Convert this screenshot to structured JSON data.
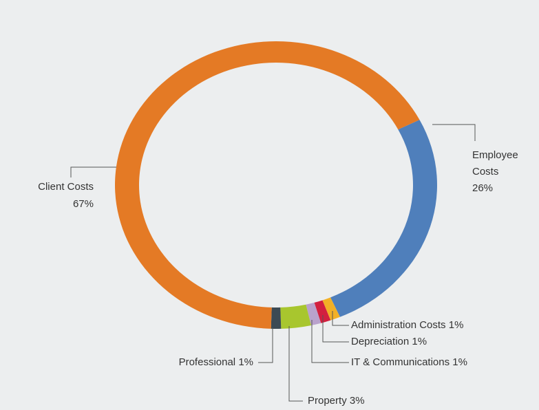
{
  "chart_data": {
    "type": "donut",
    "categories": [
      "Employee Costs",
      "Administration Costs",
      "Depreciation",
      "IT & Communications",
      "Property",
      "Professional",
      "Client Costs"
    ],
    "values": [
      26,
      1,
      1,
      1,
      3,
      1,
      67
    ],
    "value_labels": [
      "26%",
      "1%",
      "1%",
      "1%",
      "3%",
      "1%",
      "67%"
    ],
    "colors": [
      "#4f7fbb",
      "#f2b026",
      "#d2203f",
      "#b9a2cc",
      "#a8c62e",
      "#3c4a54",
      "#e47a25"
    ]
  }
}
